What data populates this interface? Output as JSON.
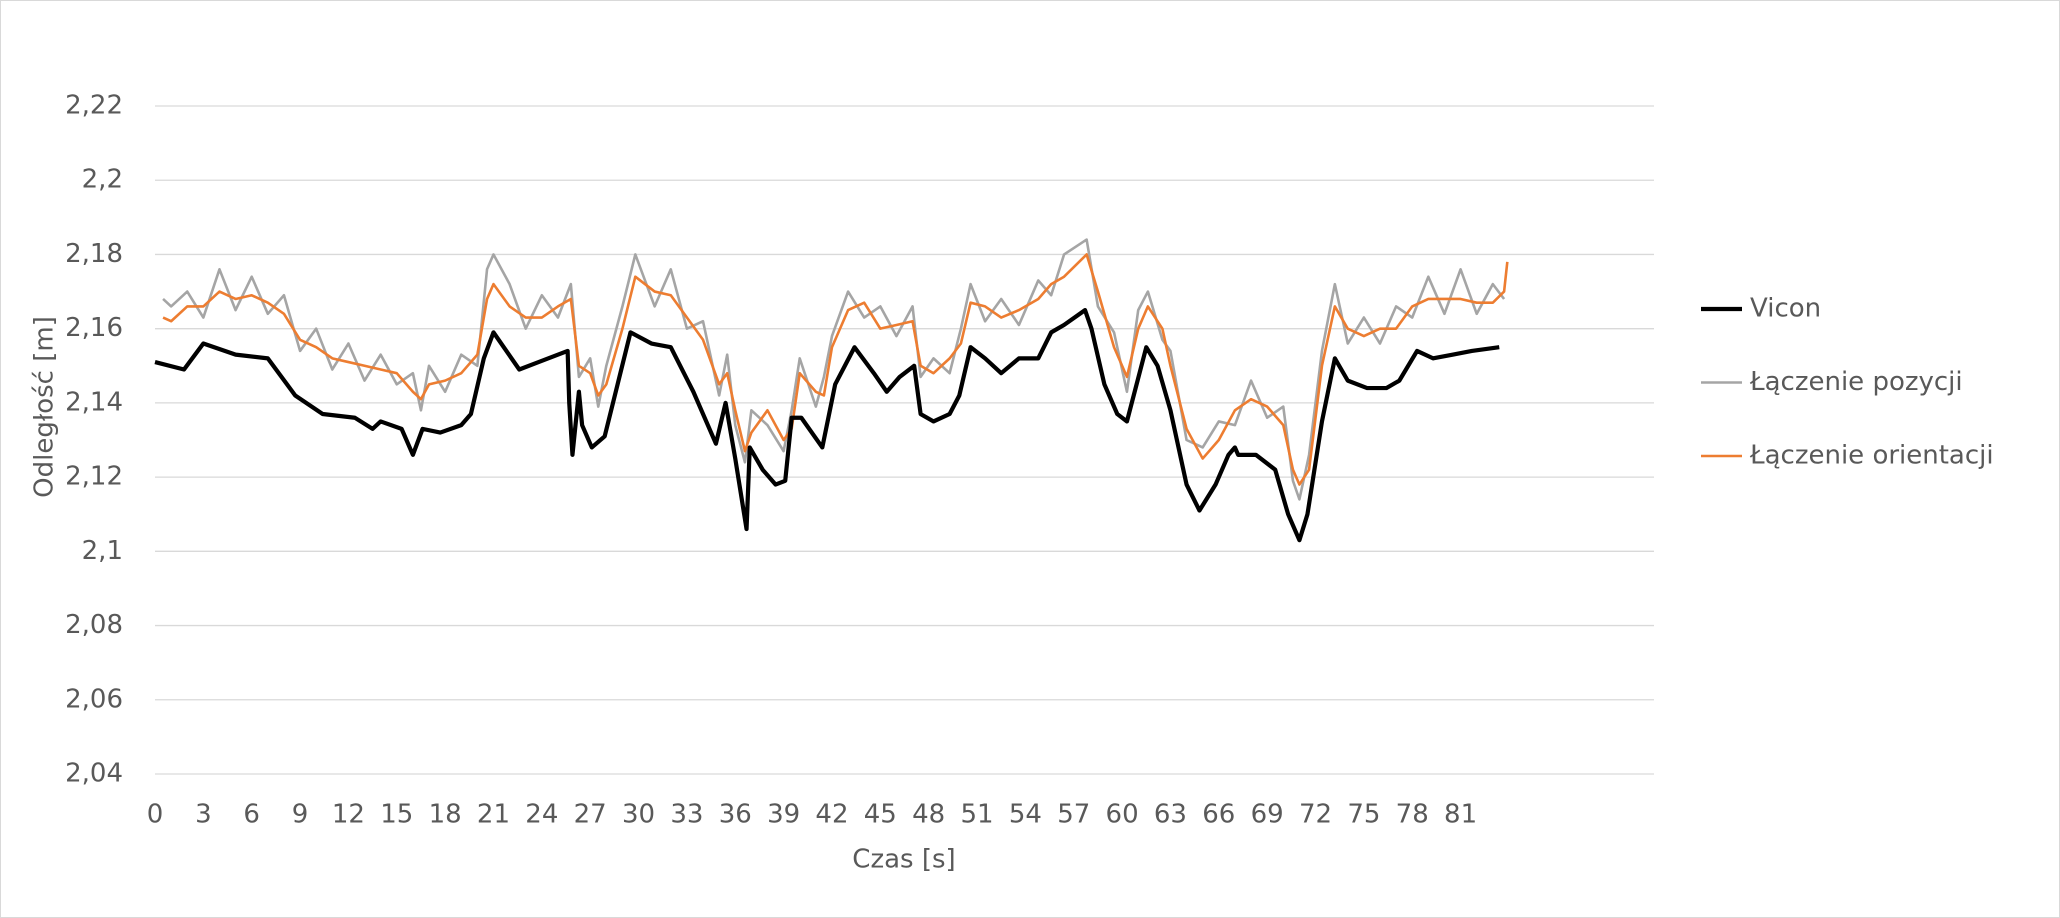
{
  "chart_data": {
    "type": "line",
    "x_label": "Czas [s]",
    "y_label": "Odległość [m]",
    "xlim": [
      0,
      93
    ],
    "ylim": [
      2.04,
      2.22
    ],
    "xticks": [
      0,
      3,
      6,
      9,
      12,
      15,
      18,
      21,
      24,
      27,
      30,
      33,
      36,
      39,
      42,
      45,
      48,
      51,
      54,
      57,
      60,
      63,
      66,
      69,
      72,
      75,
      78,
      81
    ],
    "yticks": [
      {
        "value": 2.04,
        "label": "2,04"
      },
      {
        "value": 2.06,
        "label": "2,06"
      },
      {
        "value": 2.08,
        "label": "2,08"
      },
      {
        "value": 2.1,
        "label": "2,1"
      },
      {
        "value": 2.12,
        "label": "2,12"
      },
      {
        "value": 2.14,
        "label": "2,14"
      },
      {
        "value": 2.16,
        "label": "2,16"
      },
      {
        "value": 2.18,
        "label": "2,18"
      },
      {
        "value": 2.2,
        "label": "2,2"
      },
      {
        "value": 2.22,
        "label": "2,22"
      }
    ],
    "grid": true,
    "legend": "right",
    "series": [
      {
        "name": "Vicon",
        "color": "#000000",
        "x": [
          0,
          1.8,
          3,
          5,
          7,
          8.7,
          10.4,
          12.4,
          13.5,
          14,
          15.3,
          16,
          16.6,
          17.7,
          19,
          19.6,
          20.4,
          21,
          21.8,
          22.6,
          23.8,
          25.6,
          25.7,
          25.9,
          26.3,
          26.5,
          27.1,
          27.9,
          28.7,
          29.5,
          30.8,
          32,
          33.4,
          34.8,
          35.4,
          36,
          36.7,
          36.9,
          37.7,
          38.5,
          39.1,
          39.5,
          40.1,
          41.4,
          42.2,
          43.4,
          44.6,
          45.4,
          46.2,
          47.1,
          47.5,
          48.3,
          49.3,
          49.9,
          50.6,
          51.5,
          52.5,
          53.6,
          54.8,
          55.6,
          56.4,
          57.7,
          58.1,
          58.9,
          59.7,
          60.3,
          60.9,
          61.5,
          62.2,
          63,
          64,
          64.8,
          65.8,
          66.6,
          67,
          67.2,
          68.3,
          69.5,
          70.3,
          71,
          71.5,
          72.4,
          73.2,
          74,
          75.2,
          76.4,
          77.2,
          78.3,
          79.3,
          80.5,
          81.7,
          83.4
        ],
        "values": [
          2.151,
          2.149,
          2.156,
          2.153,
          2.152,
          2.142,
          2.137,
          2.136,
          2.133,
          2.135,
          2.133,
          2.126,
          2.133,
          2.132,
          2.134,
          2.137,
          2.152,
          2.159,
          2.154,
          2.149,
          2.151,
          2.154,
          2.14,
          2.126,
          2.143,
          2.134,
          2.128,
          2.131,
          2.145,
          2.159,
          2.156,
          2.155,
          2.143,
          2.129,
          2.14,
          2.125,
          2.106,
          2.128,
          2.122,
          2.118,
          2.119,
          2.136,
          2.136,
          2.128,
          2.145,
          2.155,
          2.148,
          2.143,
          2.147,
          2.15,
          2.137,
          2.135,
          2.137,
          2.142,
          2.155,
          2.152,
          2.148,
          2.152,
          2.152,
          2.159,
          2.161,
          2.165,
          2.16,
          2.145,
          2.137,
          2.135,
          2.145,
          2.155,
          2.15,
          2.138,
          2.118,
          2.111,
          2.118,
          2.126,
          2.128,
          2.126,
          2.126,
          2.122,
          2.11,
          2.103,
          2.11,
          2.135,
          2.152,
          2.146,
          2.144,
          2.144,
          2.146,
          2.154,
          2.152,
          2.153,
          2.154,
          2.155
        ]
      },
      {
        "name": "Łączenie pozycji",
        "color": "#a5a5a5",
        "x": [
          0.5,
          1,
          2,
          3,
          4,
          5,
          6,
          7,
          8,
          9,
          10,
          11,
          12,
          13,
          14,
          15,
          16,
          16.5,
          17,
          18,
          19,
          20,
          20.6,
          21,
          22,
          23,
          24,
          25,
          25.8,
          26.3,
          27,
          27.5,
          28,
          29,
          29.8,
          31,
          32,
          33,
          34,
          35,
          35.5,
          36,
          36.6,
          37,
          38,
          39,
          39.5,
          40,
          41,
          41.5,
          42,
          43,
          44,
          45,
          46,
          47,
          47.5,
          48.3,
          49.3,
          50,
          50.6,
          51.5,
          52.5,
          53.6,
          54.8,
          55.6,
          56.4,
          57.8,
          58.5,
          59.5,
          60.3,
          61,
          61.6,
          62.5,
          63,
          64,
          65,
          66,
          67,
          68,
          69,
          70,
          70.6,
          71,
          71.6,
          72.4,
          73.2,
          74,
          75,
          76,
          77,
          78,
          79,
          80,
          81,
          82,
          83,
          83.7
        ],
        "values": [
          2.168,
          2.166,
          2.17,
          2.163,
          2.176,
          2.165,
          2.174,
          2.164,
          2.169,
          2.154,
          2.16,
          2.149,
          2.156,
          2.146,
          2.153,
          2.145,
          2.148,
          2.138,
          2.15,
          2.143,
          2.153,
          2.15,
          2.176,
          2.18,
          2.172,
          2.16,
          2.169,
          2.163,
          2.172,
          2.147,
          2.152,
          2.139,
          2.15,
          2.166,
          2.18,
          2.166,
          2.176,
          2.16,
          2.162,
          2.142,
          2.153,
          2.134,
          2.124,
          2.138,
          2.134,
          2.127,
          2.138,
          2.152,
          2.139,
          2.147,
          2.158,
          2.17,
          2.163,
          2.166,
          2.158,
          2.166,
          2.147,
          2.152,
          2.148,
          2.16,
          2.172,
          2.162,
          2.168,
          2.161,
          2.173,
          2.169,
          2.18,
          2.184,
          2.166,
          2.159,
          2.143,
          2.165,
          2.17,
          2.157,
          2.154,
          2.13,
          2.128,
          2.135,
          2.134,
          2.146,
          2.136,
          2.139,
          2.119,
          2.114,
          2.126,
          2.154,
          2.172,
          2.156,
          2.163,
          2.156,
          2.166,
          2.163,
          2.174,
          2.164,
          2.176,
          2.164,
          2.172,
          2.168
        ]
      },
      {
        "name": "Łączenie orientacji",
        "color": "#ed7d31",
        "x": [
          0.5,
          1,
          2,
          3,
          4,
          5,
          6,
          7,
          8,
          9,
          10,
          11,
          12,
          13,
          14,
          15,
          16,
          16.5,
          17,
          18,
          19,
          20,
          20.6,
          21,
          22,
          23,
          24,
          25,
          25.8,
          26.3,
          27,
          27.5,
          28,
          29,
          29.8,
          31,
          32,
          33,
          34,
          35,
          35.5,
          36,
          36.6,
          37,
          38,
          39,
          39.5,
          40,
          41,
          41.5,
          42,
          43,
          44,
          45,
          46,
          47,
          47.5,
          48.3,
          49.3,
          50,
          50.6,
          51.5,
          52.5,
          53.6,
          54.8,
          55.6,
          56.4,
          57.8,
          58.5,
          59.5,
          60.3,
          61,
          61.6,
          62.5,
          63,
          64,
          65,
          66,
          67,
          68,
          69,
          70,
          70.6,
          71,
          71.6,
          72.4,
          73.2,
          74,
          75,
          76,
          77,
          78,
          79,
          80,
          81,
          82,
          83,
          83.7,
          83.9
        ],
        "values": [
          2.163,
          2.162,
          2.166,
          2.166,
          2.17,
          2.168,
          2.169,
          2.167,
          2.164,
          2.157,
          2.155,
          2.152,
          2.151,
          2.15,
          2.149,
          2.148,
          2.143,
          2.141,
          2.145,
          2.146,
          2.148,
          2.153,
          2.168,
          2.172,
          2.166,
          2.163,
          2.163,
          2.166,
          2.168,
          2.15,
          2.148,
          2.142,
          2.145,
          2.16,
          2.174,
          2.17,
          2.169,
          2.163,
          2.157,
          2.145,
          2.148,
          2.138,
          2.127,
          2.132,
          2.138,
          2.13,
          2.133,
          2.148,
          2.143,
          2.142,
          2.155,
          2.165,
          2.167,
          2.16,
          2.161,
          2.162,
          2.15,
          2.148,
          2.152,
          2.156,
          2.167,
          2.166,
          2.163,
          2.165,
          2.168,
          2.172,
          2.174,
          2.18,
          2.17,
          2.155,
          2.147,
          2.16,
          2.166,
          2.16,
          2.15,
          2.133,
          2.125,
          2.13,
          2.138,
          2.141,
          2.139,
          2.134,
          2.122,
          2.118,
          2.122,
          2.15,
          2.166,
          2.16,
          2.158,
          2.16,
          2.16,
          2.166,
          2.168,
          2.168,
          2.168,
          2.167,
          2.167,
          2.17,
          2.178
        ]
      }
    ]
  }
}
